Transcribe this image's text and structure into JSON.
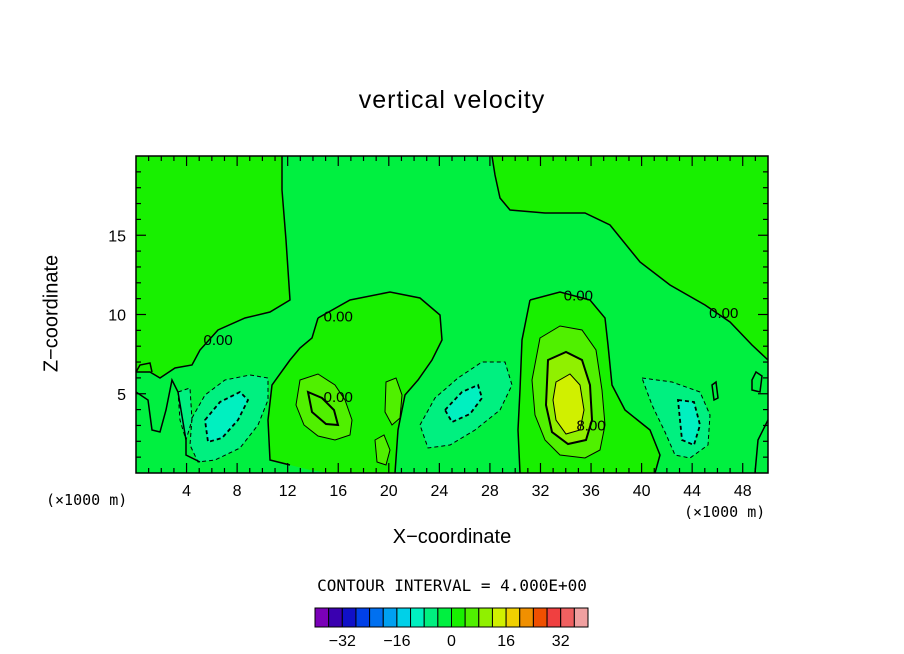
{
  "chart_data": {
    "type": "contour",
    "title": "vertical velocity",
    "xlabel": "X−coordinate",
    "ylabel": "Z−coordinate",
    "x_unit_label": "(×1000 m)",
    "x_ticks": [
      "4",
      "8",
      "12",
      "16",
      "20",
      "24",
      "28",
      "32",
      "36",
      "40",
      "44",
      "48"
    ],
    "y_ticks": [
      "5",
      "10",
      "15"
    ],
    "xlim": [
      0,
      50
    ],
    "ylim": [
      0,
      20
    ],
    "contour_labels": [
      {
        "text": "0.00",
        "x": 6.5,
        "y": 8.2
      },
      {
        "text": "0.00",
        "x": 16,
        "y": 9.7
      },
      {
        "text": "0.00",
        "x": 16,
        "y": 4.6
      },
      {
        "text": "0.00",
        "x": 35,
        "y": 11.0
      },
      {
        "text": "0.00",
        "x": 46.5,
        "y": 9.9
      },
      {
        "text": "8.00",
        "x": 36,
        "y": 2.8
      }
    ],
    "contour_interval_text": "CONTOUR INTERVAL = 4.000E+00",
    "colorbar": {
      "levels": [
        -36,
        -32,
        -28,
        -24,
        -20,
        -16,
        -12,
        -8,
        -4,
        0,
        4,
        8,
        12,
        16,
        20,
        24,
        28,
        32,
        36
      ],
      "tick_labels": [
        "−32",
        "−16",
        "0",
        "16",
        "32"
      ],
      "colors": [
        "#7a00b8",
        "#3a00b0",
        "#1010c8",
        "#0040e8",
        "#0070f0",
        "#00a0f0",
        "#00d0e8",
        "#00f0c0",
        "#00f080",
        "#00f040",
        "#18f000",
        "#50f000",
        "#90f000",
        "#d0f000",
        "#f0d000",
        "#f09000",
        "#f05000",
        "#f04040",
        "#f06060",
        "#f0a0a0"
      ],
      "background_color": "#00f040"
    }
  }
}
